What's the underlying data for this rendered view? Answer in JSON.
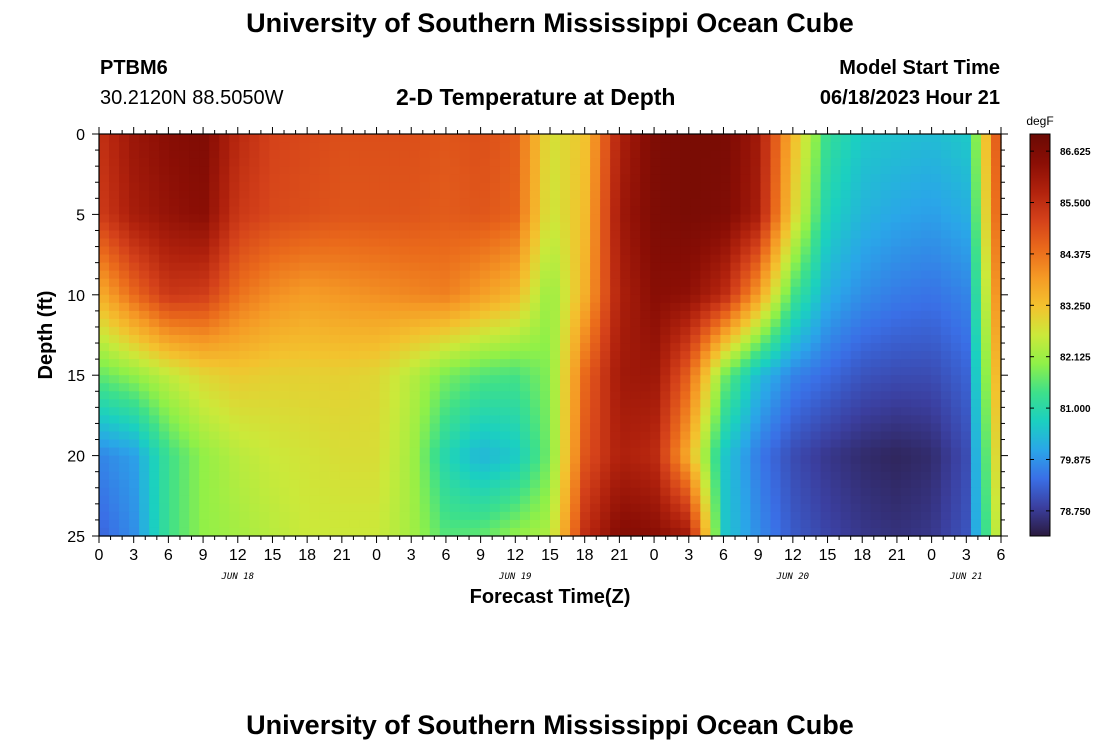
{
  "header": {
    "title": "University of Southern Mississippi Ocean Cube",
    "station_id": "PTBM6",
    "coordinates": "30.2120N  88.5050W",
    "subtitle": "2-D Temperature at Depth",
    "model_start_label": "Model Start Time",
    "model_start_value": "06/18/2023 Hour 21"
  },
  "footer": {
    "title": "University of Southern Mississippi Ocean Cube"
  },
  "chart_data": {
    "type": "heatmap",
    "title": "2-D Temperature at Depth",
    "xlabel": "Forecast Time(Z)",
    "ylabel": "Depth (ft)",
    "x_hours": [
      0,
      3,
      6,
      9,
      12,
      15,
      18,
      21,
      24,
      27,
      30,
      33,
      36,
      39,
      42,
      45,
      48,
      51,
      54,
      57,
      60,
      63,
      66,
      69,
      72,
      75,
      78
    ],
    "x_tick_labels": [
      "0",
      "3",
      "6",
      "9",
      "12",
      "15",
      "18",
      "21",
      "0",
      "3",
      "6",
      "9",
      "12",
      "15",
      "18",
      "21",
      "0",
      "3",
      "6",
      "9",
      "12",
      "15",
      "18",
      "21",
      "0",
      "3",
      "6"
    ],
    "date_labels": [
      {
        "label": "JUN 18",
        "hour": 12
      },
      {
        "label": "JUN 19",
        "hour": 36
      },
      {
        "label": "JUN 20",
        "hour": 60
      },
      {
        "label": "JUN 21",
        "hour": 75
      }
    ],
    "y_ticks": [
      0,
      5,
      10,
      15,
      20,
      25
    ],
    "xlim": [
      0,
      78
    ],
    "ylim": [
      0,
      25
    ],
    "y_inverted": true,
    "depths_ft": [
      0,
      5,
      10,
      15,
      20,
      25
    ],
    "times_h": [
      0,
      3,
      6,
      9,
      12,
      15,
      18,
      21,
      24,
      27,
      30,
      33,
      36,
      39,
      42,
      45,
      48,
      51,
      54,
      57,
      60,
      63,
      66,
      69,
      72,
      75,
      78
    ],
    "values_degF": [
      [
        85.4,
        86.1,
        86.4,
        86.6,
        85.6,
        85.1,
        85.0,
        84.9,
        84.9,
        84.9,
        84.8,
        84.9,
        84.7,
        82.7,
        83.2,
        85.8,
        86.6,
        86.7,
        86.7,
        86.0,
        83.4,
        81.2,
        80.6,
        80.5,
        80.4,
        80.6,
        85.3
      ],
      [
        85.2,
        85.9,
        86.2,
        86.4,
        85.3,
        85.0,
        84.9,
        84.8,
        84.8,
        84.8,
        84.7,
        84.8,
        84.6,
        82.6,
        83.3,
        86.0,
        86.6,
        86.7,
        86.6,
        85.9,
        83.0,
        80.8,
        80.3,
        80.1,
        80.0,
        80.2,
        85.1
      ],
      [
        83.5,
        84.5,
        85.3,
        85.2,
        84.4,
        84.0,
        83.8,
        83.9,
        84.0,
        84.1,
        84.2,
        83.8,
        83.4,
        82.0,
        83.5,
        85.8,
        86.4,
        86.3,
        85.6,
        83.8,
        81.4,
        80.2,
        79.8,
        79.6,
        79.5,
        79.7,
        84.6
      ],
      [
        81.6,
        82.0,
        82.5,
        82.9,
        83.1,
        83.0,
        83.0,
        83.0,
        82.9,
        82.4,
        81.8,
        81.5,
        81.4,
        81.9,
        84.5,
        86.0,
        86.1,
        84.6,
        81.8,
        80.4,
        79.7,
        79.4,
        79.1,
        79.0,
        79.0,
        79.3,
        84.0
      ],
      [
        79.7,
        80.0,
        81.3,
        82.0,
        82.4,
        82.6,
        82.7,
        82.8,
        82.8,
        82.2,
        80.9,
        80.3,
        80.6,
        81.8,
        84.8,
        85.8,
        85.6,
        83.5,
        80.6,
        79.6,
        79.0,
        78.7,
        78.5,
        78.4,
        78.5,
        79.0,
        83.5
      ],
      [
        79.3,
        79.8,
        81.3,
        82.0,
        82.2,
        82.4,
        82.6,
        82.6,
        82.6,
        82.2,
        81.5,
        81.6,
        82.0,
        82.3,
        85.5,
        86.5,
        86.4,
        86.0,
        80.6,
        79.8,
        79.2,
        78.9,
        78.7,
        78.6,
        78.7,
        79.1,
        83.0
      ]
    ],
    "colorbar": {
      "unit": "degF",
      "tick_labels": [
        "86.625",
        "85.500",
        "84.375",
        "83.250",
        "82.125",
        "81.000",
        "79.875",
        "78.750"
      ],
      "min": 78.2,
      "max": 87.0,
      "colors": [
        "#2a1a3e",
        "#3b3f9f",
        "#3a6fe6",
        "#2aa6e8",
        "#1bd0c0",
        "#3ee08a",
        "#8ff048",
        "#cbe93a",
        "#f3c22e",
        "#f59a25",
        "#ea6a1b",
        "#d4411a",
        "#b1220d",
        "#8a0e05",
        "#6b0a04"
      ]
    },
    "grid": false
  }
}
